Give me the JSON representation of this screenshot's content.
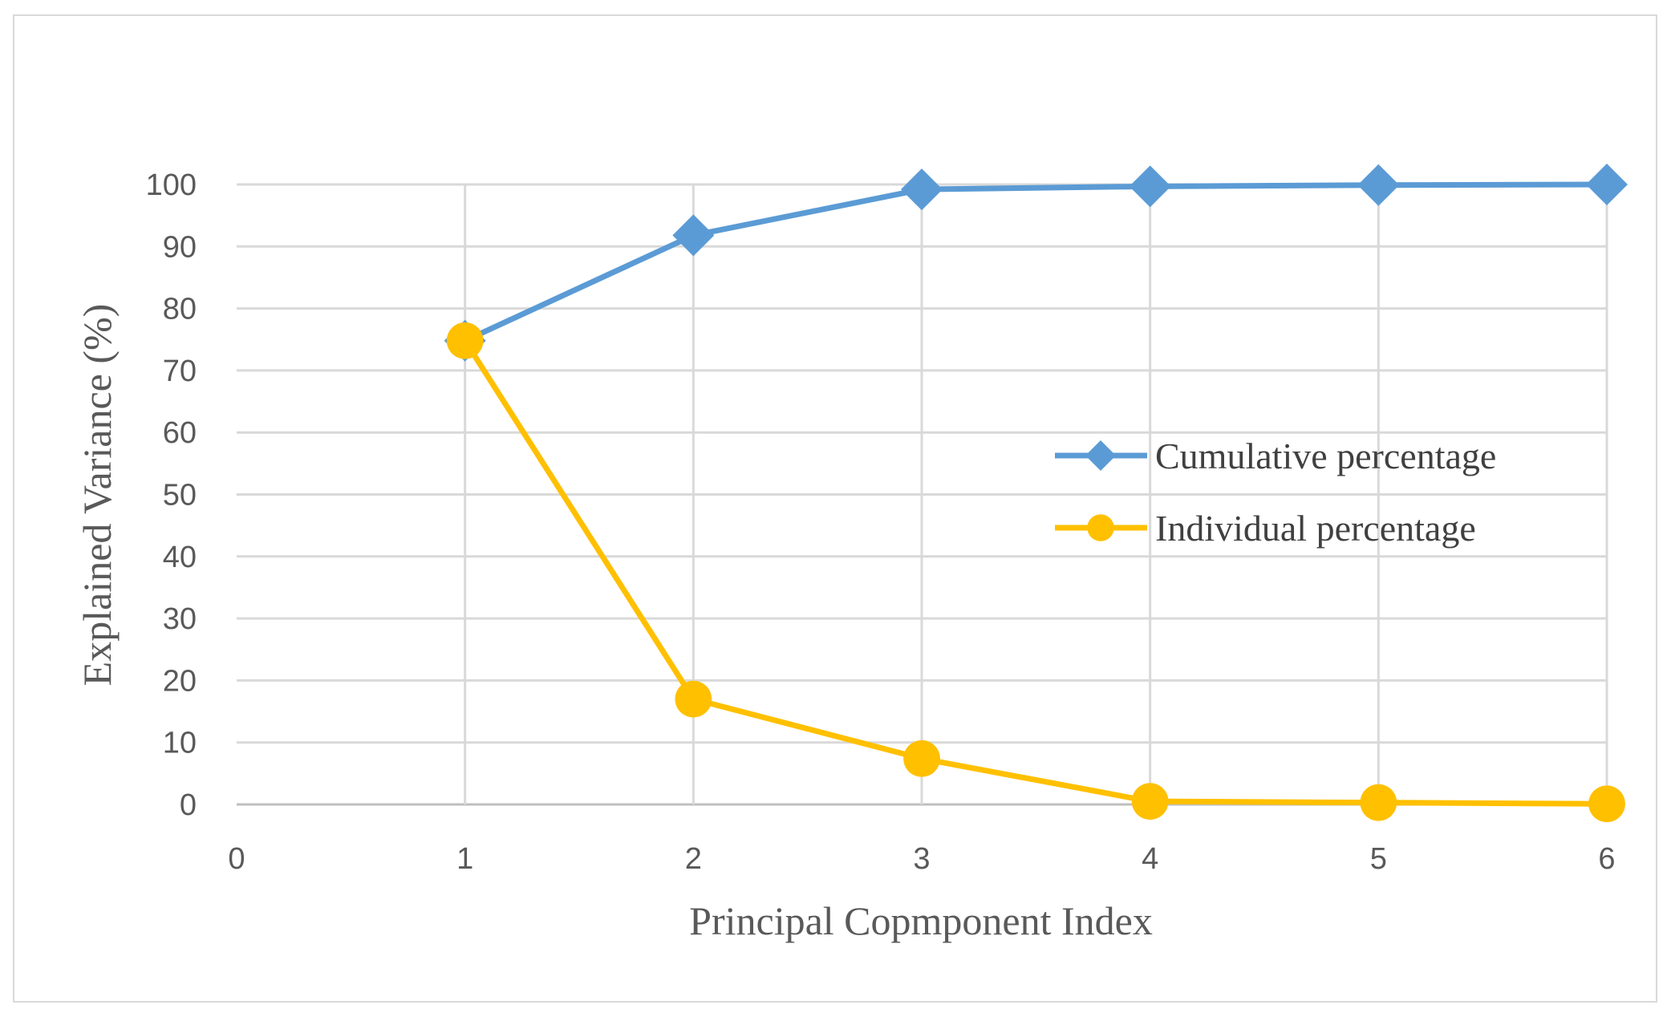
{
  "chart_data": {
    "type": "line",
    "title": "",
    "xlabel": "Principal Copmponent Index",
    "ylabel": "Explained Variance (%)",
    "xlim": [
      0,
      6
    ],
    "ylim": [
      0,
      100
    ],
    "x_ticks": [
      "0",
      "1",
      "2",
      "3",
      "4",
      "5",
      "6"
    ],
    "y_ticks": [
      "0",
      "10",
      "20",
      "30",
      "40",
      "50",
      "60",
      "70",
      "80",
      "90",
      "100"
    ],
    "grid": true,
    "legend_position": "right-center",
    "series": [
      {
        "name": "Cumulative percentage",
        "color": "#5b9bd5",
        "marker": "diamond",
        "x": [
          1,
          2,
          3,
          4,
          5,
          6
        ],
        "y": [
          74.8,
          91.8,
          99.2,
          99.7,
          99.9,
          100
        ]
      },
      {
        "name": "Individual percentage",
        "color": "#ffc000",
        "marker": "circle",
        "x": [
          1,
          2,
          3,
          4,
          5,
          6
        ],
        "y": [
          74.8,
          17.0,
          7.4,
          0.5,
          0.3,
          0.1
        ]
      }
    ]
  }
}
